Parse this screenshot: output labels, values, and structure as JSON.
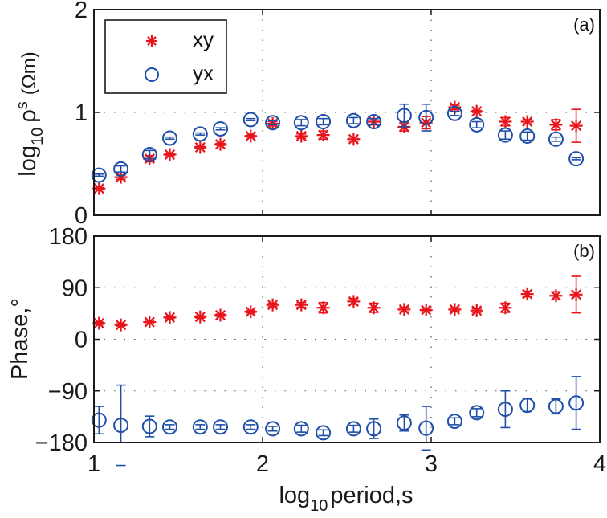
{
  "chart_data": [
    {
      "type": "scatter",
      "panel_tag": "(a)",
      "title": "",
      "xlabel": "",
      "ylabel_main": "log",
      "ylabel_sub": "10",
      "ylabel_rho": "ρ",
      "ylabel_rho_sub": "s",
      "ylabel_unit": "(Ωm)",
      "xlim": [
        1,
        4
      ],
      "ylim": [
        0,
        2
      ],
      "xticks": [
        1,
        2,
        3,
        4
      ],
      "yticks": [
        0,
        1,
        2
      ],
      "ytick_labels": [
        "0",
        "1",
        "2"
      ],
      "grid": true,
      "legend": {
        "placement": "top-left",
        "entries": [
          {
            "label": "xy",
            "marker": "asterisk",
            "color": "#e8141b"
          },
          {
            "label": "yx",
            "marker": "circle",
            "color": "#1f4fa8"
          }
        ]
      },
      "series": [
        {
          "name": "xy",
          "marker": "asterisk",
          "color": "#e8141b",
          "x": [
            1.03,
            1.16,
            1.33,
            1.45,
            1.63,
            1.75,
            1.93,
            2.06,
            2.23,
            2.36,
            2.54,
            2.66,
            2.84,
            2.97,
            3.14,
            3.27,
            3.44,
            3.57,
            3.74,
            3.86
          ],
          "y": [
            0.26,
            0.37,
            0.55,
            0.59,
            0.66,
            0.69,
            0.77,
            0.89,
            0.77,
            0.78,
            0.74,
            0.91,
            0.86,
            0.9,
            1.05,
            1.01,
            0.91,
            0.91,
            0.88,
            0.87
          ],
          "err": [
            0.01,
            0.02,
            0.03,
            0.01,
            0.01,
            0.01,
            0.01,
            0.02,
            0.02,
            0.04,
            0.02,
            0.03,
            0.04,
            0.06,
            0.02,
            0.01,
            0.04,
            0.02,
            0.05,
            0.16
          ]
        },
        {
          "name": "yx",
          "marker": "circle",
          "color": "#1f4fa8",
          "x": [
            1.03,
            1.16,
            1.33,
            1.45,
            1.63,
            1.75,
            1.93,
            2.06,
            2.23,
            2.36,
            2.54,
            2.66,
            2.84,
            2.97,
            3.14,
            3.27,
            3.44,
            3.57,
            3.74,
            3.86
          ],
          "y": [
            0.39,
            0.45,
            0.59,
            0.75,
            0.79,
            0.84,
            0.93,
            0.9,
            0.9,
            0.91,
            0.92,
            0.91,
            0.97,
            0.95,
            0.99,
            0.88,
            0.78,
            0.77,
            0.74,
            0.55
          ],
          "err": [
            0.01,
            0.03,
            0.04,
            0.01,
            0.01,
            0.01,
            0.01,
            0.02,
            0.03,
            0.03,
            0.03,
            0.03,
            0.11,
            0.13,
            0.02,
            0.03,
            0.04,
            0.04,
            0.02,
            0.01
          ]
        }
      ]
    },
    {
      "type": "scatter",
      "panel_tag": "(b)",
      "title": "",
      "xlabel_main": "log",
      "xlabel_sub": "10",
      "xlabel_rest": "period,s",
      "ylabel": "Phase,°",
      "xlim": [
        1,
        4
      ],
      "ylim": [
        -180,
        180
      ],
      "xticks": [
        1,
        2,
        3,
        4
      ],
      "xtick_labels": [
        "1",
        "2",
        "3",
        "4"
      ],
      "yticks": [
        -180,
        -90,
        0,
        90,
        180
      ],
      "ytick_labels": [
        "−180",
        "−90",
        "0",
        "90",
        "180"
      ],
      "grid": true,
      "series": [
        {
          "name": "xy",
          "marker": "asterisk",
          "color": "#e8141b",
          "x": [
            1.03,
            1.16,
            1.33,
            1.45,
            1.63,
            1.75,
            1.93,
            2.06,
            2.23,
            2.36,
            2.54,
            2.66,
            2.84,
            2.97,
            3.14,
            3.27,
            3.44,
            3.57,
            3.74,
            3.86
          ],
          "y": [
            28,
            25,
            30,
            38,
            39,
            42,
            48,
            60,
            60,
            55,
            66,
            55,
            52,
            51,
            52,
            50,
            55,
            79,
            76,
            78
          ],
          "err": [
            2,
            2,
            3,
            2,
            2,
            2,
            2,
            3,
            4,
            9,
            5,
            8,
            4,
            3,
            3,
            3,
            8,
            5,
            7,
            32
          ]
        },
        {
          "name": "yx",
          "marker": "circle",
          "color": "#1f4fa8",
          "x": [
            1.03,
            1.16,
            1.33,
            1.45,
            1.63,
            1.75,
            1.93,
            2.06,
            2.23,
            2.36,
            2.54,
            2.66,
            2.84,
            2.97,
            3.14,
            3.27,
            3.44,
            3.57,
            3.74,
            3.86
          ],
          "y": [
            -141,
            -150,
            -152,
            -153,
            -153,
            -153,
            -153,
            -156,
            -156,
            -163,
            -156,
            -156,
            -146,
            -155,
            -143,
            -128,
            -122,
            -115,
            -117,
            -111
          ],
          "err": [
            24,
            70,
            18,
            4,
            4,
            4,
            4,
            4,
            6,
            5,
            6,
            17,
            14,
            38,
            6,
            7,
            32,
            11,
            13,
            46
          ]
        }
      ]
    }
  ]
}
